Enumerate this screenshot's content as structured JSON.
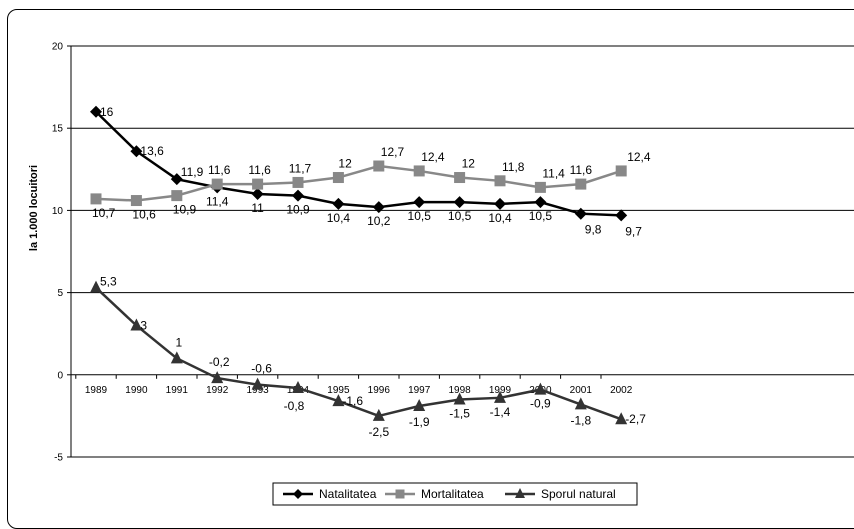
{
  "chart_data": {
    "type": "line",
    "ylabel": "la 1.000 locuitori",
    "ylim": [
      -5,
      20
    ],
    "yticks": [
      -5,
      0,
      5,
      10,
      15,
      20
    ],
    "grid": true,
    "legend_position": "bottom",
    "categories": [
      "1989",
      "1990",
      "1991",
      "1992",
      "1993",
      "1994",
      "1995",
      "1996",
      "1997",
      "1998",
      "1999",
      "2000",
      "2001",
      "2002"
    ],
    "series": [
      {
        "name": "Natalitatea",
        "color": "#000000",
        "marker": "diamond",
        "values": [
          16,
          13.6,
          11.9,
          11.4,
          11,
          10.9,
          10.4,
          10.2,
          10.5,
          10.5,
          10.4,
          10.5,
          9.8,
          9.7
        ],
        "labels": [
          "16",
          "13,6",
          "11,9",
          "11,4",
          "11",
          "10,9",
          "10,4",
          "10,2",
          "10,5",
          "10,5",
          "10,4",
          "10,5",
          "9,8",
          "9,7"
        ]
      },
      {
        "name": "Mortalitatea",
        "color": "#888888",
        "marker": "square",
        "values": [
          10.7,
          10.6,
          10.9,
          11.6,
          11.6,
          11.7,
          12,
          12.7,
          12.4,
          12,
          11.8,
          11.4,
          11.6,
          12.4
        ],
        "labels": [
          "10,7",
          "10,6",
          "10,9",
          "11,6",
          "11,6",
          "11,7",
          "12",
          "12,7",
          "12,4",
          "12",
          "11,8",
          "11,4",
          "11,6",
          "12,4"
        ]
      },
      {
        "name": "Sporul natural",
        "color": "#333333",
        "marker": "triangle",
        "values": [
          5.3,
          3,
          1,
          -0.2,
          -0.6,
          -0.8,
          -1.6,
          -2.5,
          -1.9,
          -1.5,
          -1.4,
          -0.9,
          -1.8,
          -2.7
        ],
        "labels": [
          "5,3",
          "3",
          "1",
          "-0,2",
          "-0,6",
          "-0,8",
          "-1,6",
          "-2,5",
          "-1,9",
          "-1,5",
          "-1,4",
          "-0,9",
          "-1,8",
          "-2,7"
        ]
      }
    ]
  }
}
